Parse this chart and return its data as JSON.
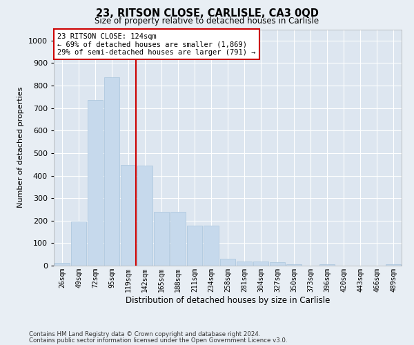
{
  "title1": "23, RITSON CLOSE, CARLISLE, CA3 0QD",
  "title2": "Size of property relative to detached houses in Carlisle",
  "xlabel": "Distribution of detached houses by size in Carlisle",
  "ylabel": "Number of detached properties",
  "footnote1": "Contains HM Land Registry data © Crown copyright and database right 2024.",
  "footnote2": "Contains public sector information licensed under the Open Government Licence v3.0.",
  "annotation_line1": "23 RITSON CLOSE: 124sqm",
  "annotation_line2": "← 69% of detached houses are smaller (1,869)",
  "annotation_line3": "29% of semi-detached houses are larger (791) →",
  "bar_color": "#c6d9ec",
  "bar_edge_color": "#a8c4dc",
  "vline_color": "#cc0000",
  "annotation_box_edge": "#cc0000",
  "fig_background": "#e8eef4",
  "plot_background": "#dde6f0",
  "grid_color": "#ffffff",
  "categories": [
    "26sqm",
    "49sqm",
    "72sqm",
    "95sqm",
    "119sqm",
    "142sqm",
    "165sqm",
    "188sqm",
    "211sqm",
    "234sqm",
    "258sqm",
    "281sqm",
    "304sqm",
    "327sqm",
    "350sqm",
    "373sqm",
    "396sqm",
    "420sqm",
    "443sqm",
    "466sqm",
    "489sqm"
  ],
  "values": [
    12,
    195,
    735,
    838,
    448,
    445,
    240,
    240,
    178,
    178,
    30,
    18,
    18,
    15,
    6,
    0,
    5,
    0,
    0,
    0,
    7
  ],
  "ylim": [
    0,
    1050
  ],
  "yticks": [
    0,
    100,
    200,
    300,
    400,
    500,
    600,
    700,
    800,
    900,
    1000
  ],
  "vline_x": 4.45,
  "figsize": [
    6.0,
    5.0
  ],
  "dpi": 100
}
